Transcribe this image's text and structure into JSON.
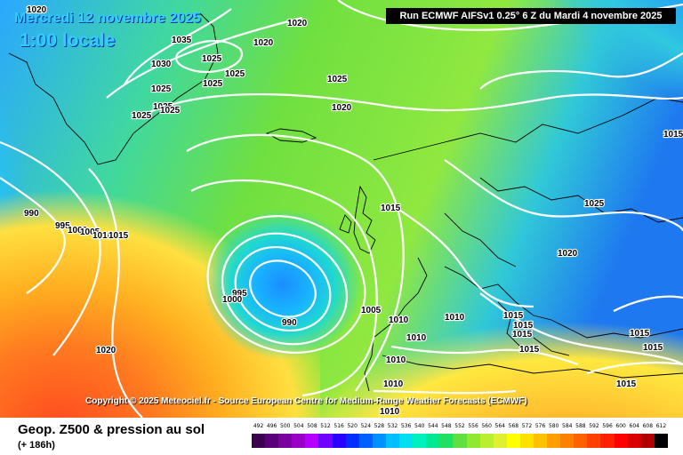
{
  "header": {
    "date": "Mercredi 12 novembre 2025",
    "time": "1:00 locale",
    "run": "Run ECMWF AIFSv1 0.25° 6 Z du Mardi 4 novembre 2025"
  },
  "copyright": "Copyright © 2025 Meteociel.fr - Source European Centre for Medium-Range Weather Forecasts (ECMWF)",
  "footer": {
    "title": "Geop. Z500 & pression au sol",
    "subtitle": "(+ 186h)"
  },
  "legend": {
    "values": [
      "492",
      "496",
      "500",
      "504",
      "508",
      "512",
      "516",
      "520",
      "524",
      "528",
      "532",
      "536",
      "540",
      "544",
      "548",
      "552",
      "556",
      "560",
      "564",
      "568",
      "572",
      "576",
      "580",
      "584",
      "588",
      "592",
      "596",
      "600",
      "604",
      "608",
      "612"
    ],
    "colors": [
      "#3c0050",
      "#5a0078",
      "#7a00a0",
      "#9800c8",
      "#b400ff",
      "#7000ff",
      "#2800ff",
      "#0030ff",
      "#0060ff",
      "#0090ff",
      "#00c0ff",
      "#00e0f0",
      "#00f0c0",
      "#00e890",
      "#20e060",
      "#60e040",
      "#90e830",
      "#b8f030",
      "#e0f030",
      "#ffff00",
      "#ffe000",
      "#ffc000",
      "#ffa000",
      "#ff8000",
      "#ff6000",
      "#ff4000",
      "#ff2000",
      "#ff0000",
      "#d80000",
      "#b00000",
      "#000000"
    ]
  },
  "isobars": [
    {
      "value": "1020",
      "id": "a"
    },
    {
      "value": "1020",
      "id": "b"
    },
    {
      "value": "1020",
      "id": "c"
    },
    {
      "value": "1035",
      "id": "d"
    },
    {
      "value": "1030",
      "id": "e"
    },
    {
      "value": "1025",
      "id": "f"
    },
    {
      "value": "1025",
      "id": "g"
    },
    {
      "value": "1025",
      "id": "h"
    },
    {
      "value": "1025",
      "id": "i"
    },
    {
      "value": "1025",
      "id": "j"
    },
    {
      "value": "1025",
      "id": "k"
    },
    {
      "value": "1025",
      "id": "l"
    },
    {
      "value": "1025",
      "id": "m"
    },
    {
      "value": "1020",
      "id": "n"
    },
    {
      "value": "990",
      "id": "o"
    },
    {
      "value": "995",
      "id": "p"
    },
    {
      "value": "1000",
      "id": "q"
    },
    {
      "value": "1005",
      "id": "r"
    },
    {
      "value": "1010",
      "id": "s"
    },
    {
      "value": "1015",
      "id": "t"
    },
    {
      "value": "1015",
      "id": "u"
    },
    {
      "value": "1025",
      "id": "v"
    },
    {
      "value": "1020",
      "id": "w"
    },
    {
      "value": "995",
      "id": "x"
    },
    {
      "value": "1000",
      "id": "y"
    },
    {
      "value": "990",
      "id": "z"
    },
    {
      "value": "1005",
      "id": "aa"
    },
    {
      "value": "1010",
      "id": "ab"
    },
    {
      "value": "1010",
      "id": "ac"
    },
    {
      "value": "1010",
      "id": "ad"
    },
    {
      "value": "1010",
      "id": "ae"
    },
    {
      "value": "1015",
      "id": "af"
    },
    {
      "value": "1015",
      "id": "ag"
    },
    {
      "value": "1015",
      "id": "ah"
    },
    {
      "value": "1015",
      "id": "ai"
    },
    {
      "value": "1015",
      "id": "aj"
    },
    {
      "value": "1015",
      "id": "ak"
    },
    {
      "value": "1015",
      "id": "al"
    },
    {
      "value": "1020",
      "id": "am"
    },
    {
      "value": "1010",
      "id": "an"
    },
    {
      "value": "1010",
      "id": "ao"
    },
    {
      "value": "1015",
      "id": "ap"
    }
  ],
  "colors": {
    "isobar": "#ffffff",
    "coast": "#000000",
    "low_center": "#0a7cff",
    "high_warm": "#ff4020"
  }
}
